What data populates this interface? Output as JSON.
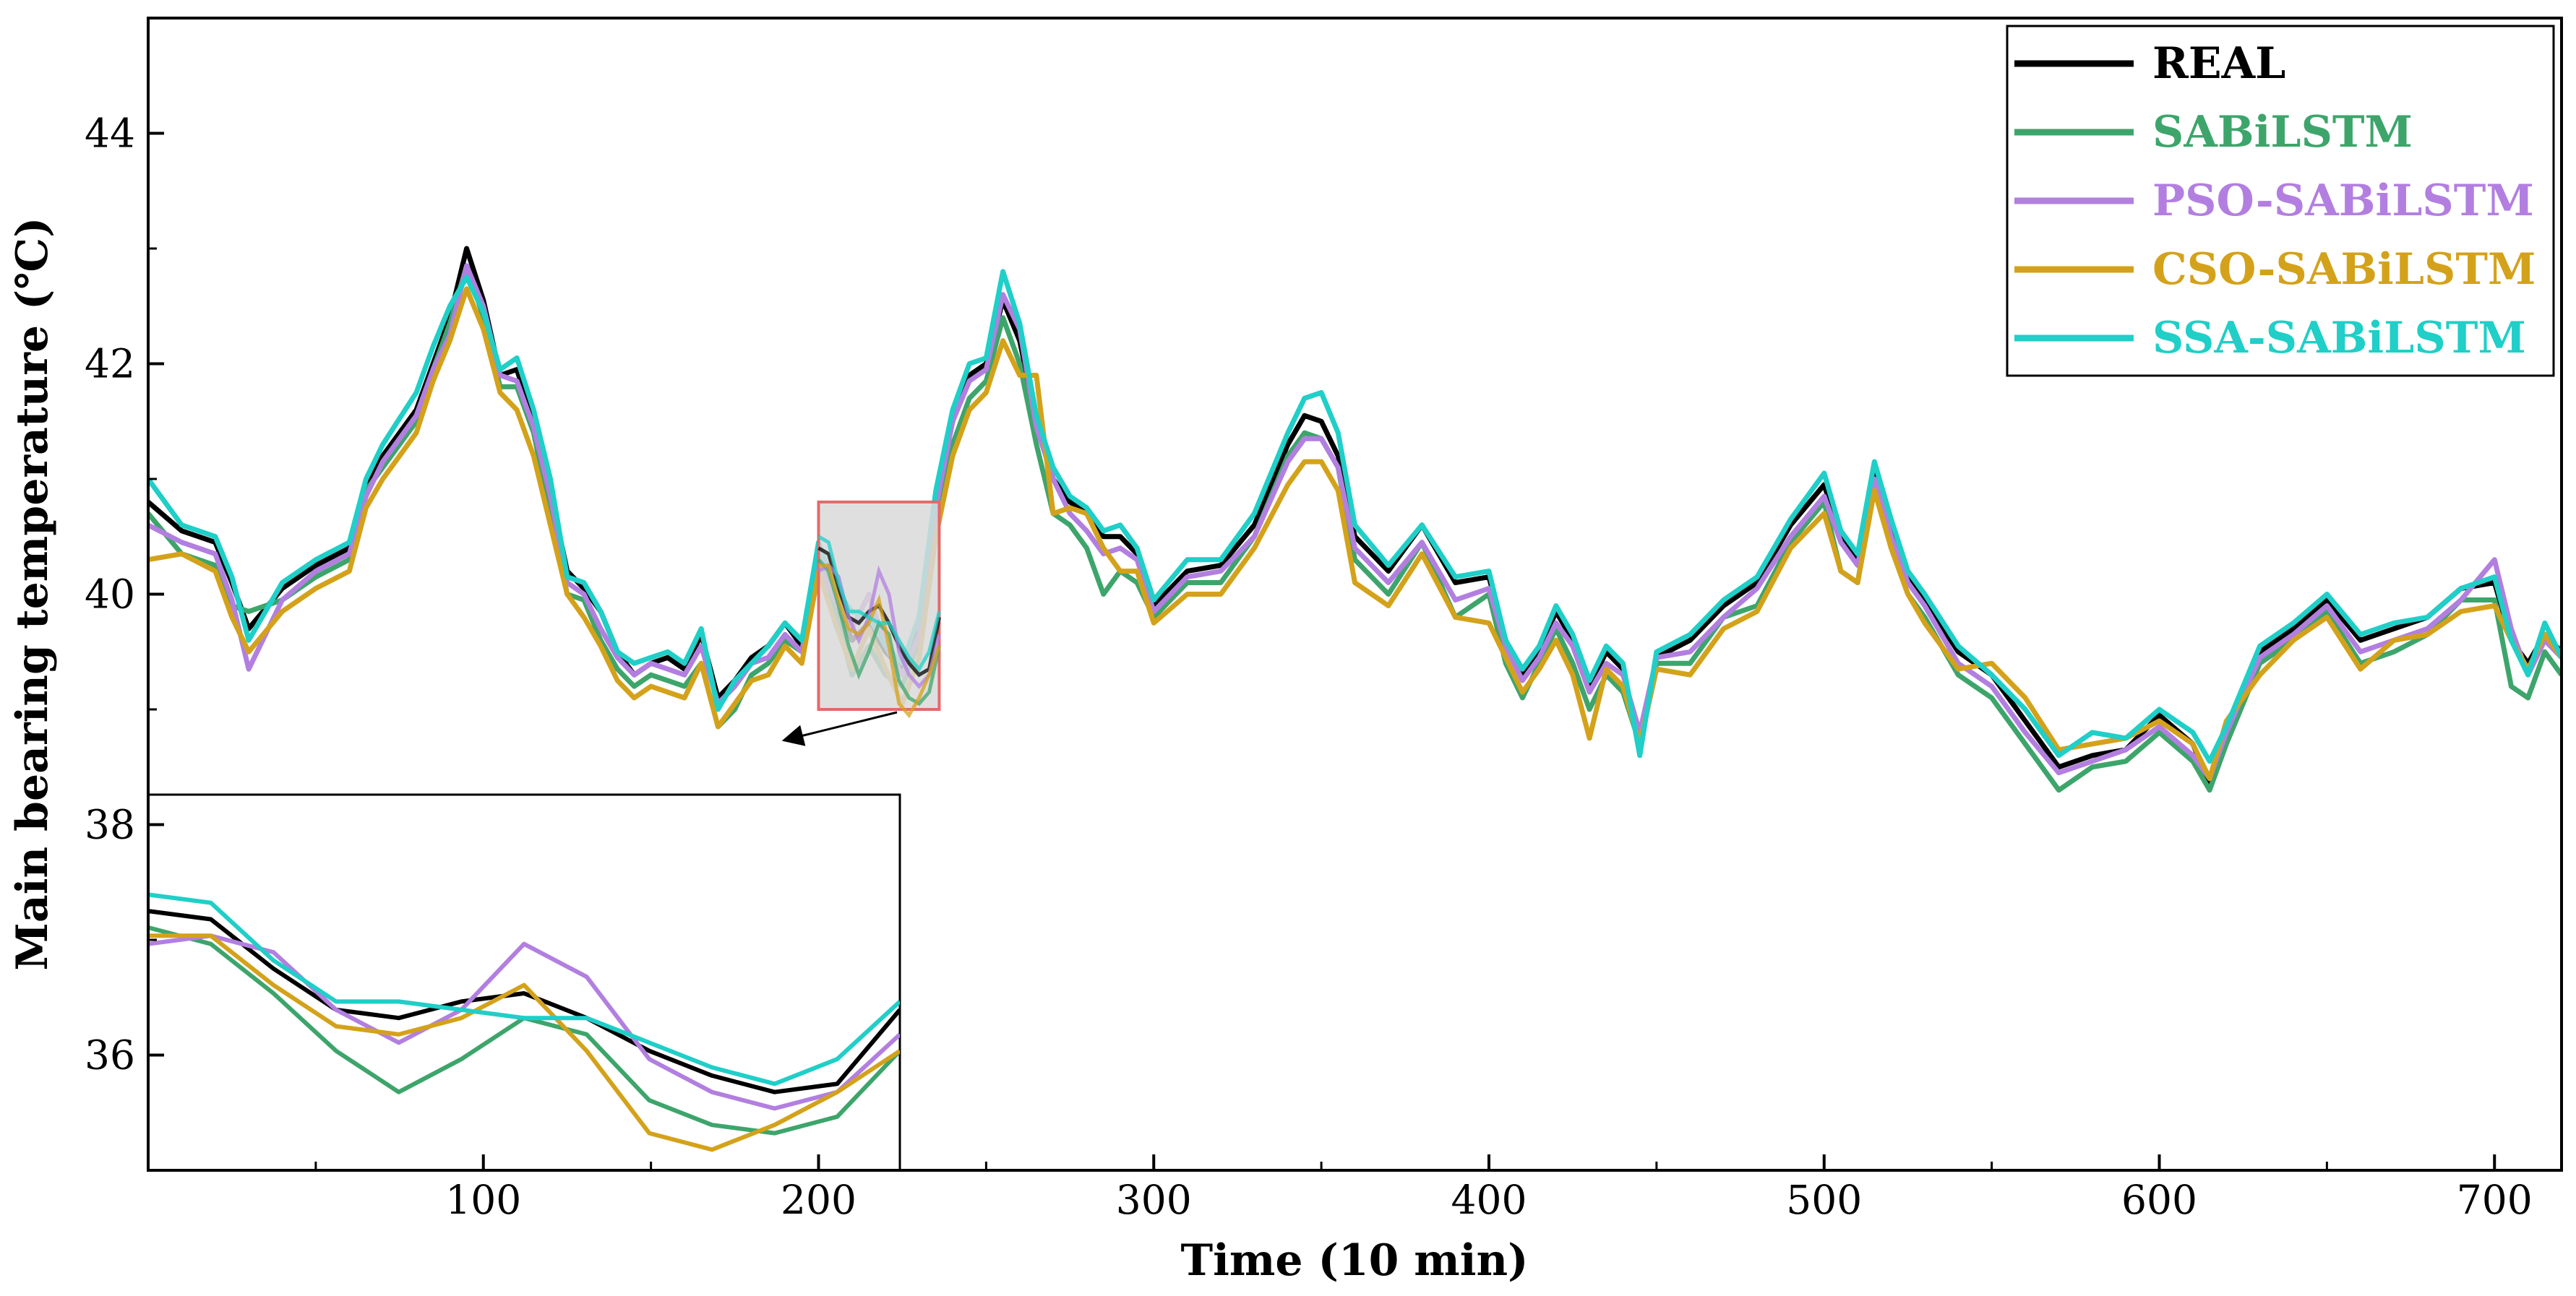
{
  "chart_data": {
    "type": "line",
    "title": "",
    "xlabel": "Time (10 min)",
    "ylabel": "Main bearing temperature (℃)",
    "xlim": [
      0,
      720
    ],
    "ylim": [
      35,
      45
    ],
    "xticks": [
      100,
      200,
      300,
      400,
      500,
      600,
      700
    ],
    "yticks": [
      36,
      38,
      40,
      42,
      44
    ],
    "legend_position": "top-right",
    "x": [
      0,
      10,
      20,
      25,
      30,
      40,
      50,
      60,
      65,
      70,
      80,
      85,
      90,
      95,
      100,
      105,
      110,
      115,
      120,
      125,
      130,
      135,
      140,
      145,
      150,
      155,
      160,
      165,
      170,
      175,
      180,
      185,
      190,
      195,
      200,
      205,
      210,
      215,
      220,
      225,
      230,
      235,
      240,
      245,
      250,
      255,
      260,
      265,
      270,
      275,
      280,
      285,
      290,
      295,
      300,
      310,
      320,
      330,
      340,
      345,
      350,
      355,
      360,
      370,
      380,
      390,
      400,
      405,
      410,
      415,
      420,
      425,
      430,
      435,
      440,
      445,
      450,
      460,
      470,
      480,
      490,
      500,
      505,
      510,
      515,
      520,
      525,
      530,
      540,
      550,
      560,
      570,
      580,
      590,
      600,
      610,
      615,
      620,
      630,
      640,
      650,
      660,
      670,
      680,
      690,
      700,
      705,
      710,
      715,
      720
    ],
    "series": [
      {
        "name": "REAL",
        "color": "#000000",
        "values": [
          40.8,
          40.55,
          40.45,
          40.1,
          39.7,
          40.05,
          40.25,
          40.4,
          40.9,
          41.2,
          41.6,
          42.0,
          42.4,
          43.0,
          42.55,
          41.9,
          41.95,
          41.5,
          40.9,
          40.2,
          40.05,
          39.85,
          39.5,
          39.3,
          39.4,
          39.45,
          39.35,
          39.65,
          39.1,
          39.25,
          39.45,
          39.55,
          39.75,
          39.55,
          40.4,
          39.95,
          39.6,
          39.75,
          39.5,
          39.35,
          39.7,
          40.8,
          41.5,
          41.9,
          42.0,
          42.55,
          42.2,
          41.5,
          41.0,
          40.8,
          40.7,
          40.5,
          40.5,
          40.35,
          39.9,
          40.2,
          40.25,
          40.6,
          41.3,
          41.55,
          41.5,
          41.2,
          40.5,
          40.2,
          40.6,
          40.1,
          40.15,
          39.6,
          39.3,
          39.5,
          39.85,
          39.6,
          39.2,
          39.5,
          39.35,
          38.7,
          39.45,
          39.6,
          39.9,
          40.1,
          40.6,
          40.95,
          40.5,
          40.3,
          41.1,
          40.6,
          40.15,
          39.95,
          39.5,
          39.3,
          38.9,
          38.5,
          38.6,
          38.65,
          38.95,
          38.7,
          38.35,
          38.8,
          39.5,
          39.7,
          39.95,
          39.6,
          39.7,
          39.8,
          40.05,
          40.1,
          39.6,
          39.4,
          39.65,
          39.5
        ]
      },
      {
        "name": "SABiLSTM",
        "color": "#3da56b",
        "values": [
          40.7,
          40.35,
          40.25,
          39.9,
          39.85,
          39.95,
          40.15,
          40.3,
          40.9,
          41.1,
          41.5,
          41.95,
          42.35,
          42.85,
          42.4,
          41.8,
          41.8,
          41.4,
          40.7,
          40.0,
          39.95,
          39.6,
          39.35,
          39.2,
          39.3,
          39.25,
          39.2,
          39.4,
          38.85,
          39.0,
          39.3,
          39.4,
          39.6,
          39.5,
          40.35,
          39.85,
          39.3,
          39.55,
          39.3,
          39.2,
          39.6,
          40.6,
          41.3,
          41.7,
          41.85,
          42.4,
          42.0,
          41.3,
          40.7,
          40.6,
          40.4,
          40.0,
          40.2,
          40.1,
          39.8,
          40.1,
          40.1,
          40.5,
          41.2,
          41.4,
          41.35,
          41.1,
          40.3,
          40.0,
          40.45,
          39.8,
          40.0,
          39.4,
          39.1,
          39.4,
          39.7,
          39.4,
          39.0,
          39.3,
          39.15,
          38.7,
          39.4,
          39.4,
          39.8,
          39.9,
          40.45,
          40.8,
          40.2,
          40.1,
          40.95,
          40.4,
          40.0,
          39.8,
          39.3,
          39.1,
          38.7,
          38.3,
          38.5,
          38.55,
          38.8,
          38.55,
          38.3,
          38.7,
          39.4,
          39.6,
          39.85,
          39.4,
          39.5,
          39.65,
          39.95,
          39.95,
          39.2,
          39.1,
          39.5,
          39.3
        ]
      },
      {
        "name": "PSO-SABiLSTM",
        "color": "#b27fe0",
        "values": [
          40.6,
          40.45,
          40.35,
          39.95,
          39.35,
          39.95,
          40.2,
          40.35,
          40.85,
          41.15,
          41.55,
          41.95,
          42.25,
          42.85,
          42.5,
          41.9,
          41.85,
          41.45,
          40.85,
          40.1,
          40.0,
          39.7,
          39.45,
          39.3,
          39.4,
          39.35,
          39.3,
          39.55,
          39.05,
          39.2,
          39.4,
          39.45,
          39.65,
          39.5,
          40.25,
          39.95,
          39.7,
          40.0,
          39.55,
          39.3,
          39.65,
          40.75,
          41.5,
          41.85,
          41.95,
          42.6,
          42.3,
          41.45,
          41.0,
          40.7,
          40.55,
          40.35,
          40.4,
          40.3,
          39.85,
          40.15,
          40.2,
          40.5,
          41.15,
          41.35,
          41.35,
          41.1,
          40.4,
          40.1,
          40.45,
          39.95,
          40.05,
          39.55,
          39.25,
          39.45,
          39.75,
          39.55,
          39.15,
          39.4,
          39.3,
          38.8,
          39.45,
          39.5,
          39.8,
          40.05,
          40.5,
          40.85,
          40.45,
          40.25,
          41.0,
          40.5,
          40.1,
          39.9,
          39.4,
          39.2,
          38.8,
          38.45,
          38.55,
          38.65,
          38.85,
          38.6,
          38.4,
          38.8,
          39.45,
          39.65,
          39.9,
          39.5,
          39.6,
          39.7,
          39.95,
          40.3,
          39.7,
          39.3,
          39.6,
          39.45
        ]
      },
      {
        "name": "CSO-SABiLSTM",
        "color": "#d4a21a",
        "values": [
          40.3,
          40.35,
          40.2,
          39.8,
          39.5,
          39.85,
          40.05,
          40.2,
          40.75,
          41.0,
          41.4,
          41.85,
          42.2,
          42.65,
          42.3,
          41.75,
          41.6,
          41.2,
          40.6,
          40.0,
          39.8,
          39.55,
          39.25,
          39.1,
          39.2,
          39.15,
          39.1,
          39.4,
          38.85,
          39.05,
          39.25,
          39.3,
          39.55,
          39.4,
          40.2,
          39.75,
          39.35,
          39.7,
          39.35,
          39.05,
          39.45,
          40.5,
          41.2,
          41.6,
          41.75,
          42.2,
          41.9,
          41.9,
          40.7,
          40.75,
          40.7,
          40.4,
          40.2,
          40.2,
          39.75,
          40.0,
          40.0,
          40.4,
          40.95,
          41.15,
          41.15,
          40.9,
          40.1,
          39.9,
          40.35,
          39.8,
          39.75,
          39.45,
          39.15,
          39.35,
          39.6,
          39.3,
          38.75,
          39.35,
          39.2,
          38.7,
          39.35,
          39.3,
          39.7,
          39.85,
          40.4,
          40.7,
          40.2,
          40.1,
          40.9,
          40.4,
          40.0,
          39.75,
          39.35,
          39.4,
          39.1,
          38.65,
          38.7,
          38.75,
          38.9,
          38.7,
          38.4,
          38.9,
          39.3,
          39.6,
          39.8,
          39.35,
          39.6,
          39.65,
          39.85,
          39.9,
          39.6,
          39.35,
          39.65,
          39.45
        ]
      },
      {
        "name": "SSA-SABiLSTM",
        "color": "#1fcfc8",
        "values": [
          41.0,
          40.6,
          40.5,
          40.15,
          39.6,
          40.1,
          40.3,
          40.45,
          41.0,
          41.3,
          41.75,
          42.15,
          42.5,
          42.75,
          42.45,
          41.95,
          42.05,
          41.6,
          41.0,
          40.15,
          40.1,
          39.85,
          39.5,
          39.4,
          39.45,
          39.5,
          39.4,
          39.7,
          39.0,
          39.25,
          39.4,
          39.55,
          39.75,
          39.6,
          40.45,
          40.05,
          39.85,
          39.8,
          39.55,
          39.4,
          39.8,
          40.9,
          41.6,
          42.0,
          42.05,
          42.8,
          42.35,
          41.55,
          41.1,
          40.85,
          40.75,
          40.55,
          40.6,
          40.4,
          39.95,
          40.3,
          40.3,
          40.7,
          41.4,
          41.7,
          41.75,
          41.4,
          40.6,
          40.25,
          40.6,
          40.15,
          40.2,
          39.6,
          39.35,
          39.55,
          39.9,
          39.65,
          39.25,
          39.55,
          39.4,
          38.6,
          39.5,
          39.65,
          39.95,
          40.15,
          40.65,
          41.05,
          40.55,
          40.35,
          41.15,
          40.65,
          40.2,
          40.0,
          39.55,
          39.3,
          39.0,
          38.6,
          38.8,
          38.75,
          39.0,
          38.8,
          38.55,
          38.85,
          39.55,
          39.75,
          40.0,
          39.65,
          39.75,
          39.8,
          40.05,
          40.15,
          39.6,
          39.3,
          39.75,
          39.45
        ]
      }
    ],
    "inset": {
      "x_range": [
        200,
        236
      ],
      "y_range": [
        39.0,
        40.8
      ],
      "x": [
        200,
        203,
        206,
        209,
        212,
        215,
        218,
        221,
        224,
        227,
        230,
        233,
        236
      ],
      "series_values": {
        "REAL": [
          40.4,
          40.35,
          40.05,
          39.8,
          39.75,
          39.85,
          39.9,
          39.75,
          39.55,
          39.4,
          39.3,
          39.35,
          39.8
        ],
        "SABiLSTM": [
          40.3,
          40.2,
          39.9,
          39.55,
          39.3,
          39.5,
          39.75,
          39.65,
          39.25,
          39.1,
          39.05,
          39.15,
          39.55
        ],
        "PSO-SABiLSTM": [
          40.2,
          40.25,
          40.15,
          39.8,
          39.6,
          39.8,
          40.2,
          40.0,
          39.5,
          39.3,
          39.2,
          39.3,
          39.65
        ],
        "CSO-SABiLSTM": [
          40.25,
          40.25,
          39.95,
          39.7,
          39.65,
          39.75,
          39.95,
          39.55,
          39.05,
          38.95,
          39.1,
          39.3,
          39.55
        ],
        "SSA-SABiLSTM": [
          40.5,
          40.45,
          40.1,
          39.85,
          39.85,
          39.8,
          39.75,
          39.75,
          39.6,
          39.45,
          39.35,
          39.5,
          39.85
        ]
      }
    }
  }
}
